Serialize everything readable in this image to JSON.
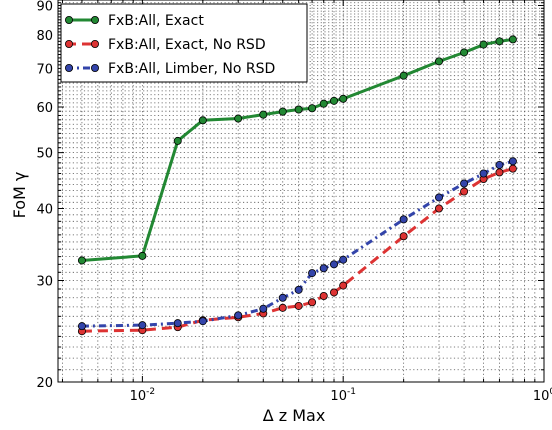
{
  "chart_data": {
    "type": "line",
    "xlabel": "Δ z Max",
    "ylabel": "FoM γ",
    "xscale": "log",
    "yscale": "log",
    "xlim": [
      0.0038,
      1.0
    ],
    "ylim": [
      20,
      92
    ],
    "grid": true,
    "legend_position": "top-left",
    "x_ticks": [
      {
        "value": 0.01,
        "base": "10",
        "exp": "-2"
      },
      {
        "value": 0.1,
        "base": "10",
        "exp": "-1"
      },
      {
        "value": 1,
        "base": "10",
        "exp": "0"
      }
    ],
    "y_ticks": [
      {
        "value": 20,
        "label": "20"
      },
      {
        "value": 30,
        "label": "30"
      },
      {
        "value": 40,
        "label": "40"
      },
      {
        "value": 50,
        "label": "50"
      },
      {
        "value": 60,
        "label": "60"
      },
      {
        "value": 70,
        "label": "70"
      },
      {
        "value": 80,
        "label": "80"
      },
      {
        "value": 90,
        "label": "90"
      }
    ],
    "series": [
      {
        "name": "FxB:All, Exact",
        "color": "#228833",
        "line_style": "solid",
        "points": [
          {
            "x": 0.005,
            "y": 32.5
          },
          {
            "x": 0.01,
            "y": 33.1
          },
          {
            "x": 0.015,
            "y": 52.4
          },
          {
            "x": 0.02,
            "y": 56.9
          },
          {
            "x": 0.03,
            "y": 57.3
          },
          {
            "x": 0.04,
            "y": 58.2
          },
          {
            "x": 0.05,
            "y": 58.9
          },
          {
            "x": 0.06,
            "y": 59.4
          },
          {
            "x": 0.07,
            "y": 59.7
          },
          {
            "x": 0.08,
            "y": 60.8
          },
          {
            "x": 0.09,
            "y": 61.5
          },
          {
            "x": 0.1,
            "y": 62.0
          },
          {
            "x": 0.2,
            "y": 68.0
          },
          {
            "x": 0.3,
            "y": 72.0
          },
          {
            "x": 0.4,
            "y": 74.6
          },
          {
            "x": 0.5,
            "y": 77.0
          },
          {
            "x": 0.6,
            "y": 78.0
          },
          {
            "x": 0.7,
            "y": 78.6
          }
        ]
      },
      {
        "name": "FxB:All, Exact, No RSD",
        "color": "#dd3333",
        "line_style": "dashed",
        "points": [
          {
            "x": 0.005,
            "y": 24.5
          },
          {
            "x": 0.01,
            "y": 24.6
          },
          {
            "x": 0.015,
            "y": 24.9
          },
          {
            "x": 0.02,
            "y": 25.6
          },
          {
            "x": 0.03,
            "y": 25.9
          },
          {
            "x": 0.04,
            "y": 26.3
          },
          {
            "x": 0.05,
            "y": 26.9
          },
          {
            "x": 0.06,
            "y": 27.1
          },
          {
            "x": 0.07,
            "y": 27.5
          },
          {
            "x": 0.08,
            "y": 28.2
          },
          {
            "x": 0.09,
            "y": 28.6
          },
          {
            "x": 0.1,
            "y": 29.4
          },
          {
            "x": 0.2,
            "y": 35.8
          },
          {
            "x": 0.3,
            "y": 40.0
          },
          {
            "x": 0.4,
            "y": 42.8
          },
          {
            "x": 0.5,
            "y": 45.0
          },
          {
            "x": 0.6,
            "y": 46.2
          },
          {
            "x": 0.7,
            "y": 46.9
          }
        ]
      },
      {
        "name": "FxB:All, Limber, No RSD",
        "color": "#3344aa",
        "line_style": "dashdot",
        "points": [
          {
            "x": 0.005,
            "y": 25.0
          },
          {
            "x": 0.01,
            "y": 25.1
          },
          {
            "x": 0.015,
            "y": 25.3
          },
          {
            "x": 0.02,
            "y": 25.5
          },
          {
            "x": 0.03,
            "y": 26.1
          },
          {
            "x": 0.04,
            "y": 26.8
          },
          {
            "x": 0.05,
            "y": 28.0
          },
          {
            "x": 0.06,
            "y": 28.9
          },
          {
            "x": 0.07,
            "y": 30.9
          },
          {
            "x": 0.08,
            "y": 31.5
          },
          {
            "x": 0.09,
            "y": 32.0
          },
          {
            "x": 0.1,
            "y": 32.6
          },
          {
            "x": 0.2,
            "y": 38.3
          },
          {
            "x": 0.3,
            "y": 41.8
          },
          {
            "x": 0.4,
            "y": 44.2
          },
          {
            "x": 0.5,
            "y": 46.0
          },
          {
            "x": 0.6,
            "y": 47.6
          },
          {
            "x": 0.7,
            "y": 48.3
          }
        ]
      }
    ]
  }
}
